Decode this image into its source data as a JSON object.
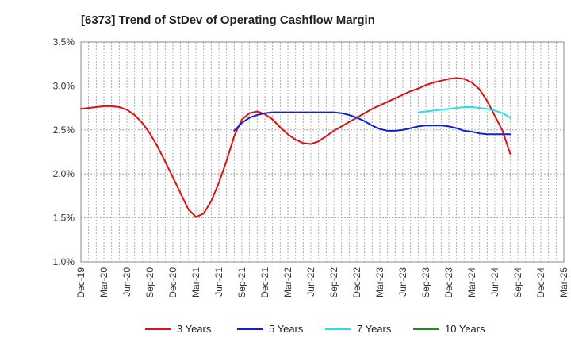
{
  "chart_data": {
    "type": "line",
    "title": "[6373]  Trend of StDev of Operating Cashflow Margin",
    "xlabel": "",
    "ylabel": "",
    "ylim": [
      1.0,
      3.5
    ],
    "y_ticks": [
      "1.0%",
      "1.5%",
      "2.0%",
      "2.5%",
      "3.0%",
      "3.5%"
    ],
    "x_ticks": [
      "Dec-19",
      "Mar-20",
      "Jun-20",
      "Sep-20",
      "Dec-20",
      "Mar-21",
      "Jun-21",
      "Sep-21",
      "Dec-21",
      "Mar-22",
      "Jun-22",
      "Sep-22",
      "Dec-22",
      "Mar-23",
      "Jun-23",
      "Sep-23",
      "Dec-23",
      "Mar-24",
      "Jun-24",
      "Sep-24",
      "Dec-24",
      "Mar-25"
    ],
    "grid": true,
    "legend_position": "bottom",
    "series": [
      {
        "name": "3 Years",
        "color": "#dd1111",
        "points": [
          [
            "Dec-19",
            2.74
          ],
          [
            "Jan-20",
            2.75
          ],
          [
            "Feb-20",
            2.76
          ],
          [
            "Mar-20",
            2.77
          ],
          [
            "Apr-20",
            2.77
          ],
          [
            "May-20",
            2.76
          ],
          [
            "Jun-20",
            2.73
          ],
          [
            "Jul-20",
            2.67
          ],
          [
            "Aug-20",
            2.58
          ],
          [
            "Sep-20",
            2.46
          ],
          [
            "Oct-20",
            2.31
          ],
          [
            "Nov-20",
            2.14
          ],
          [
            "Dec-20",
            1.96
          ],
          [
            "Jan-21",
            1.78
          ],
          [
            "Feb-21",
            1.6
          ],
          [
            "Mar-21",
            1.51
          ],
          [
            "Apr-21",
            1.55
          ],
          [
            "May-21",
            1.69
          ],
          [
            "Jun-21",
            1.9
          ],
          [
            "Jul-21",
            2.15
          ],
          [
            "Aug-21",
            2.43
          ],
          [
            "Sep-21",
            2.62
          ],
          [
            "Oct-21",
            2.69
          ],
          [
            "Nov-21",
            2.71
          ],
          [
            "Dec-21",
            2.68
          ],
          [
            "Jan-22",
            2.62
          ],
          [
            "Feb-22",
            2.53
          ],
          [
            "Mar-22",
            2.45
          ],
          [
            "Apr-22",
            2.39
          ],
          [
            "May-22",
            2.35
          ],
          [
            "Jun-22",
            2.34
          ],
          [
            "Jul-22",
            2.37
          ],
          [
            "Aug-22",
            2.43
          ],
          [
            "Sep-22",
            2.49
          ],
          [
            "Oct-22",
            2.54
          ],
          [
            "Nov-22",
            2.59
          ],
          [
            "Dec-22",
            2.64
          ],
          [
            "Jan-23",
            2.69
          ],
          [
            "Feb-23",
            2.74
          ],
          [
            "Mar-23",
            2.78
          ],
          [
            "Apr-23",
            2.82
          ],
          [
            "May-23",
            2.86
          ],
          [
            "Jun-23",
            2.9
          ],
          [
            "Jul-23",
            2.94
          ],
          [
            "Aug-23",
            2.97
          ],
          [
            "Sep-23",
            3.01
          ],
          [
            "Oct-23",
            3.04
          ],
          [
            "Nov-23",
            3.06
          ],
          [
            "Dec-23",
            3.08
          ],
          [
            "Jan-24",
            3.09
          ],
          [
            "Feb-24",
            3.08
          ],
          [
            "Mar-24",
            3.04
          ],
          [
            "Apr-24",
            2.96
          ],
          [
            "May-24",
            2.83
          ],
          [
            "Jun-24",
            2.66
          ],
          [
            "Jul-24",
            2.49
          ],
          [
            "Aug-24",
            2.23
          ]
        ]
      },
      {
        "name": "5 Years",
        "color": "#1122cc",
        "points": [
          [
            "Aug-21",
            2.49
          ],
          [
            "Sep-21",
            2.58
          ],
          [
            "Oct-21",
            2.64
          ],
          [
            "Nov-21",
            2.67
          ],
          [
            "Dec-21",
            2.69
          ],
          [
            "Jan-22",
            2.7
          ],
          [
            "Feb-22",
            2.7
          ],
          [
            "Mar-22",
            2.7
          ],
          [
            "Apr-22",
            2.7
          ],
          [
            "May-22",
            2.7
          ],
          [
            "Jun-22",
            2.7
          ],
          [
            "Jul-22",
            2.7
          ],
          [
            "Aug-22",
            2.7
          ],
          [
            "Sep-22",
            2.7
          ],
          [
            "Oct-22",
            2.69
          ],
          [
            "Nov-22",
            2.67
          ],
          [
            "Dec-22",
            2.64
          ],
          [
            "Jan-23",
            2.6
          ],
          [
            "Feb-23",
            2.55
          ],
          [
            "Mar-23",
            2.51
          ],
          [
            "Apr-23",
            2.49
          ],
          [
            "May-23",
            2.49
          ],
          [
            "Jun-23",
            2.5
          ],
          [
            "Jul-23",
            2.52
          ],
          [
            "Aug-23",
            2.54
          ],
          [
            "Sep-23",
            2.55
          ],
          [
            "Oct-23",
            2.55
          ],
          [
            "Nov-23",
            2.55
          ],
          [
            "Dec-23",
            2.54
          ],
          [
            "Jan-24",
            2.52
          ],
          [
            "Feb-24",
            2.49
          ],
          [
            "Mar-24",
            2.48
          ],
          [
            "Apr-24",
            2.46
          ],
          [
            "May-24",
            2.45
          ],
          [
            "Jun-24",
            2.45
          ],
          [
            "Jul-24",
            2.45
          ],
          [
            "Aug-24",
            2.45
          ]
        ]
      },
      {
        "name": "7 Years",
        "color": "#22e0ee",
        "points": [
          [
            "Aug-23",
            2.7
          ],
          [
            "Sep-23",
            2.71
          ],
          [
            "Oct-23",
            2.72
          ],
          [
            "Nov-23",
            2.73
          ],
          [
            "Dec-23",
            2.74
          ],
          [
            "Jan-24",
            2.75
          ],
          [
            "Feb-24",
            2.76
          ],
          [
            "Mar-24",
            2.76
          ],
          [
            "Apr-24",
            2.75
          ],
          [
            "May-24",
            2.74
          ],
          [
            "Jun-24",
            2.72
          ],
          [
            "Jul-24",
            2.69
          ],
          [
            "Aug-24",
            2.64
          ]
        ]
      },
      {
        "name": "10 Years",
        "color": "#228822",
        "points": []
      }
    ]
  }
}
